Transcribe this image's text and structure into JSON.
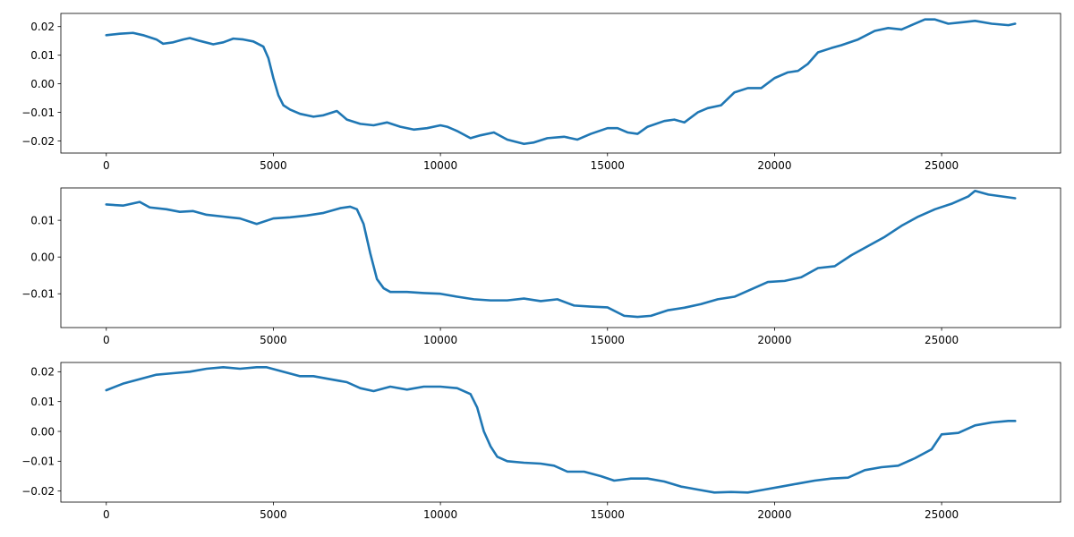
{
  "figure": {
    "colors": {
      "line": "#1f77b4",
      "axes": "#000000",
      "background": "#ffffff"
    }
  },
  "chart_data": [
    {
      "type": "line",
      "title": "",
      "xlabel": "",
      "ylabel": "",
      "xlim": [
        -1360,
        28560
      ],
      "ylim": [
        -0.0242,
        0.0246
      ],
      "xticks": [
        0,
        5000,
        10000,
        15000,
        20000,
        25000
      ],
      "yticks": [
        -0.02,
        -0.01,
        0.0,
        0.01,
        0.02
      ],
      "ytick_labels": [
        "−0.02",
        "−0.01",
        "0.00",
        "0.01",
        "0.02"
      ],
      "grid": false,
      "series": [
        {
          "x": [
            0,
            400,
            800,
            1100,
            1500,
            1700,
            2000,
            2300,
            2500,
            2800,
            3200,
            3500,
            3800,
            4100,
            4400,
            4700,
            4850,
            5000,
            5150,
            5300,
            5500,
            5800,
            6200,
            6500,
            6900,
            7200,
            7600,
            8000,
            8400,
            8800,
            9200,
            9600,
            10000,
            10200,
            10500,
            10900,
            11200,
            11600,
            12000,
            12500,
            12800,
            13200,
            13700,
            14100,
            14500,
            15000,
            15300,
            15600,
            15900,
            16200,
            16700,
            17000,
            17300,
            17700,
            18000,
            18400,
            18800,
            19200,
            19600,
            20000,
            20400,
            20700,
            21000,
            21300,
            21700,
            22000,
            22500,
            23000,
            23400,
            23800,
            24100,
            24500,
            24800,
            25200,
            25600,
            26000,
            26500,
            27000,
            27200
          ],
          "y": [
            0.017,
            0.0175,
            0.0178,
            0.017,
            0.0155,
            0.014,
            0.0145,
            0.0155,
            0.016,
            0.015,
            0.0138,
            0.0145,
            0.0158,
            0.0155,
            0.0148,
            0.013,
            0.009,
            0.002,
            -0.004,
            -0.0075,
            -0.009,
            -0.0105,
            -0.0115,
            -0.011,
            -0.0095,
            -0.0125,
            -0.014,
            -0.0145,
            -0.0135,
            -0.015,
            -0.016,
            -0.0155,
            -0.0145,
            -0.015,
            -0.0165,
            -0.019,
            -0.018,
            -0.017,
            -0.0195,
            -0.021,
            -0.0205,
            -0.019,
            -0.0185,
            -0.0195,
            -0.0175,
            -0.0155,
            -0.0155,
            -0.017,
            -0.0175,
            -0.015,
            -0.013,
            -0.0125,
            -0.0135,
            -0.01,
            -0.0085,
            -0.0075,
            -0.003,
            -0.0015,
            -0.0015,
            0.002,
            0.004,
            0.0045,
            0.007,
            0.011,
            0.0125,
            0.0135,
            0.0155,
            0.0185,
            0.0195,
            0.019,
            0.0205,
            0.0225,
            0.0225,
            0.021,
            0.0215,
            0.022,
            0.021,
            0.0205,
            0.021
          ]
        }
      ]
    },
    {
      "type": "line",
      "title": "",
      "xlabel": "",
      "ylabel": "",
      "xlim": [
        -1360,
        28560
      ],
      "ylim": [
        -0.0192,
        0.0188
      ],
      "xticks": [
        0,
        5000,
        10000,
        15000,
        20000,
        25000
      ],
      "yticks": [
        -0.01,
        0.0,
        0.01
      ],
      "ytick_labels": [
        "−0.01",
        "0.00",
        "0.01"
      ],
      "grid": false,
      "series": [
        {
          "x": [
            0,
            500,
            1000,
            1300,
            1800,
            2200,
            2600,
            3000,
            3500,
            4000,
            4500,
            5000,
            5500,
            6000,
            6500,
            7000,
            7300,
            7500,
            7700,
            7900,
            8100,
            8300,
            8500,
            9000,
            9500,
            10000,
            10500,
            11000,
            11500,
            12000,
            12500,
            13000,
            13500,
            14000,
            14500,
            15000,
            15500,
            15900,
            16300,
            16800,
            17300,
            17800,
            18300,
            18800,
            19300,
            19800,
            20300,
            20800,
            21300,
            21800,
            22300,
            22800,
            23300,
            23800,
            24300,
            24800,
            25300,
            25800,
            26000,
            26400,
            27200
          ],
          "y": [
            0.0143,
            0.014,
            0.015,
            0.0135,
            0.013,
            0.0123,
            0.0125,
            0.0115,
            0.011,
            0.0105,
            0.009,
            0.0105,
            0.0108,
            0.0113,
            0.012,
            0.0133,
            0.0137,
            0.013,
            0.009,
            0.001,
            -0.006,
            -0.0085,
            -0.0095,
            -0.0095,
            -0.0098,
            -0.01,
            -0.0108,
            -0.0115,
            -0.0118,
            -0.0118,
            -0.0113,
            -0.012,
            -0.0115,
            -0.0132,
            -0.0135,
            -0.0137,
            -0.016,
            -0.0163,
            -0.016,
            -0.0145,
            -0.0138,
            -0.0128,
            -0.0115,
            -0.0108,
            -0.0088,
            -0.0068,
            -0.0065,
            -0.0055,
            -0.003,
            -0.0025,
            0.0005,
            0.003,
            0.0055,
            0.0085,
            0.011,
            0.013,
            0.0145,
            0.0165,
            0.018,
            0.017,
            0.016
          ]
        }
      ]
    },
    {
      "type": "line",
      "title": "",
      "xlabel": "",
      "ylabel": "",
      "xlim": [
        -1360,
        28560
      ],
      "ylim": [
        -0.0237,
        0.0231
      ],
      "xticks": [
        0,
        5000,
        10000,
        15000,
        20000,
        25000
      ],
      "yticks": [
        -0.02,
        -0.01,
        0.0,
        0.01,
        0.02
      ],
      "ytick_labels": [
        "−0.02",
        "−0.01",
        "0.00",
        "0.01",
        "0.02"
      ],
      "grid": false,
      "series": [
        {
          "x": [
            0,
            500,
            1000,
            1500,
            2000,
            2500,
            3000,
            3500,
            4000,
            4500,
            4800,
            5300,
            5800,
            6200,
            6700,
            7200,
            7600,
            8000,
            8500,
            9000,
            9500,
            10000,
            10500,
            10900,
            11100,
            11300,
            11500,
            11700,
            12000,
            12500,
            13000,
            13400,
            13800,
            14300,
            14800,
            15200,
            15700,
            16200,
            16700,
            17200,
            17700,
            18200,
            18700,
            19200,
            19700,
            20200,
            20700,
            21200,
            21700,
            22200,
            22700,
            23200,
            23700,
            24200,
            24700,
            25000,
            25500,
            26000,
            26500,
            27000,
            27200
          ],
          "y": [
            0.0138,
            0.016,
            0.0175,
            0.019,
            0.0195,
            0.02,
            0.021,
            0.0215,
            0.021,
            0.0215,
            0.0215,
            0.02,
            0.0185,
            0.0185,
            0.0175,
            0.0165,
            0.0145,
            0.0135,
            0.015,
            0.014,
            0.015,
            0.015,
            0.0145,
            0.0125,
            0.008,
            0.0,
            -0.005,
            -0.0085,
            -0.01,
            -0.0105,
            -0.0108,
            -0.0115,
            -0.0135,
            -0.0135,
            -0.015,
            -0.0165,
            -0.0158,
            -0.0158,
            -0.0168,
            -0.0185,
            -0.0195,
            -0.0205,
            -0.0203,
            -0.0205,
            -0.0195,
            -0.0185,
            -0.0175,
            -0.0165,
            -0.0158,
            -0.0155,
            -0.013,
            -0.012,
            -0.0115,
            -0.009,
            -0.006,
            -0.001,
            -0.0005,
            0.002,
            0.003,
            0.0035,
            0.0035
          ]
        }
      ]
    }
  ]
}
